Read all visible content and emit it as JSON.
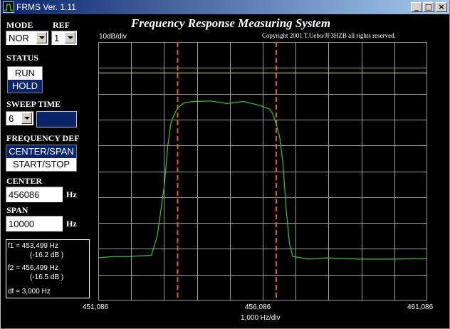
{
  "window": {
    "title": "FRMS Ver. 1.11",
    "minimize": "_",
    "maximize": "□",
    "close": "×"
  },
  "controls": {
    "mode_label": "MODE",
    "ref_label": "REF",
    "mode_value": "NOR",
    "ref_value": "1",
    "status_label": "STATUS",
    "status_options": [
      "RUN",
      "HOLD"
    ],
    "sweep_label": "SWEEP TIME",
    "sweep_value": "6",
    "freq_def_label": "FREQUENCY DEF",
    "freq_def_options": [
      "CENTER/SPAN",
      "START/STOP"
    ],
    "center_label": "CENTER",
    "center_value": "456086",
    "center_unit": "Hz",
    "span_label": "SPAN",
    "span_value": "10000",
    "span_unit": "Hz"
  },
  "measurements": {
    "f1": "f1 = 453,499 Hz",
    "f1_db": "(-16.2 dB )",
    "f2": "f2 = 456,499 Hz",
    "f2_db": "(-16.5 dB )",
    "df": "df = 3,000 Hz"
  },
  "header": {
    "title": "Frequency Response Measuring System",
    "copyright": "Copyright 2001 T.Uebo/JF3HZB all rights reserved.",
    "ydiv": "10dB/div"
  },
  "chart_data": {
    "type": "line",
    "xlabel": "1,000 Hz/div",
    "x_tick_labels": [
      "451,086",
      "456,086",
      "461,086"
    ],
    "xlim": [
      451086,
      461086
    ],
    "y_divisions": 10,
    "grid": true,
    "reference_level_div": 8.8,
    "markers_hz": [
      453499,
      456499
    ],
    "series": [
      {
        "x": [
          451086,
          451500,
          452000,
          452700,
          452880,
          453100,
          453200,
          453300,
          453400,
          453500,
          453700,
          454000,
          454500,
          455000,
          455500,
          456000,
          456300,
          456400,
          456500,
          456600,
          456700,
          456800,
          456900,
          457000,
          457500,
          458000,
          459000,
          460000,
          461086
        ],
        "y_div": [
          1.65,
          1.7,
          1.7,
          1.75,
          2.5,
          4.5,
          6.0,
          6.9,
          7.2,
          7.45,
          7.65,
          7.7,
          7.72,
          7.62,
          7.7,
          7.55,
          7.4,
          7.2,
          6.8,
          6.35,
          5.3,
          3.5,
          2.2,
          1.7,
          1.6,
          1.65,
          1.6,
          1.6,
          1.62
        ]
      }
    ],
    "colors": {
      "trace": "#33cc33",
      "grid": "#9a9a9a",
      "reference": "#e8e060",
      "markers": "#e06030"
    }
  }
}
